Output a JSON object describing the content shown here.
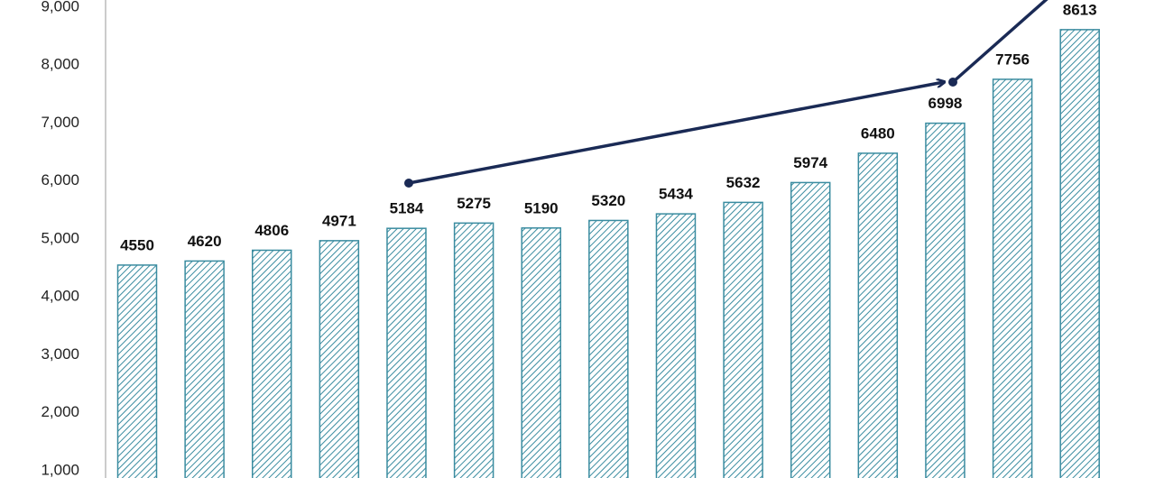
{
  "chart_data": {
    "type": "bar",
    "categories": [
      null,
      null,
      null,
      null,
      null,
      null,
      null,
      null,
      null,
      null,
      null,
      null,
      null,
      null,
      null
    ],
    "values": [
      4550,
      4620,
      4806,
      4971,
      5184,
      5275,
      5190,
      5320,
      5434,
      5632,
      5974,
      6480,
      6998,
      7756,
      8613
    ],
    "color": "#3a8ca0",
    "ylim": [
      1000,
      9000
    ],
    "yticks": [
      {
        "value": 1000,
        "label": "1,000"
      },
      {
        "value": 2000,
        "label": "2,000"
      },
      {
        "value": 3000,
        "label": "3,000"
      },
      {
        "value": 4000,
        "label": "4,000"
      },
      {
        "value": 5000,
        "label": "5,000"
      },
      {
        "value": 6000,
        "label": "6,000"
      },
      {
        "value": 7000,
        "label": "7,000"
      },
      {
        "value": 8000,
        "label": "8,000"
      },
      {
        "value": 9000,
        "label": "9,000"
      }
    ],
    "grid": false
  }
}
